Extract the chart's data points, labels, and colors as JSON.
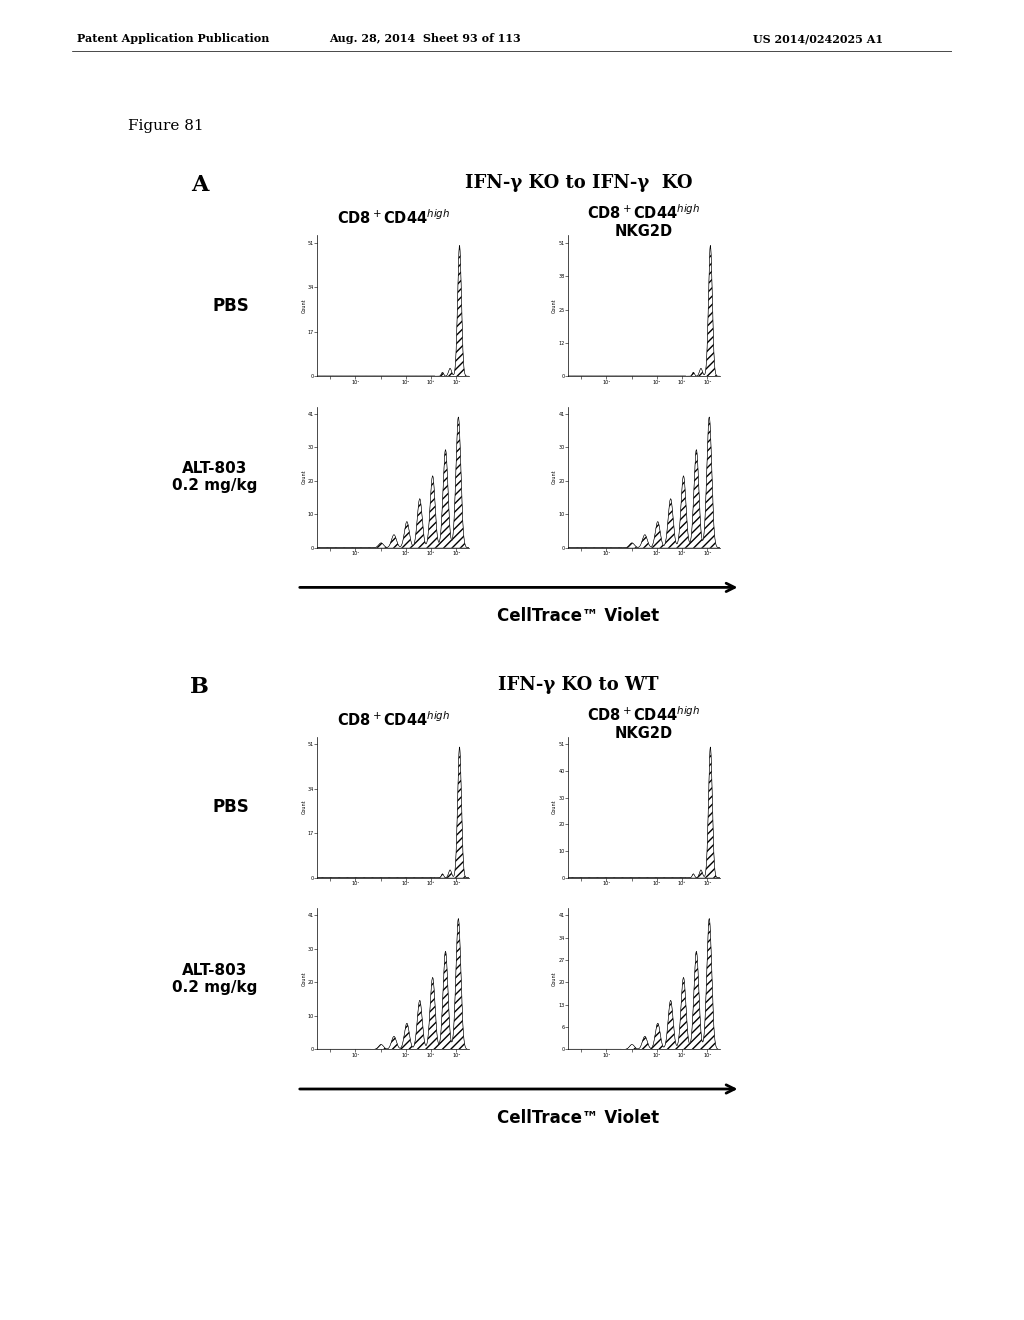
{
  "header_left": "Patent Application Publication",
  "header_center": "Aug. 28, 2014  Sheet 93 of 113",
  "header_right": "US 2014/0242025 A1",
  "figure_label": "Figure 81",
  "section_A_label": "A",
  "section_B_label": "B",
  "section_A_title": "IFN-γ KO to IFN-γ  KO",
  "section_B_title": "IFN-γ KO to WT",
  "col1_label": "CD8⁺CD44ʰᴵᴳʰ",
  "row1_label": "PBS",
  "row2_label": "ALT-803\n0.2 mg/kg",
  "x_axis_label": "CellTrace™ Violet",
  "background_color": "#ffffff"
}
